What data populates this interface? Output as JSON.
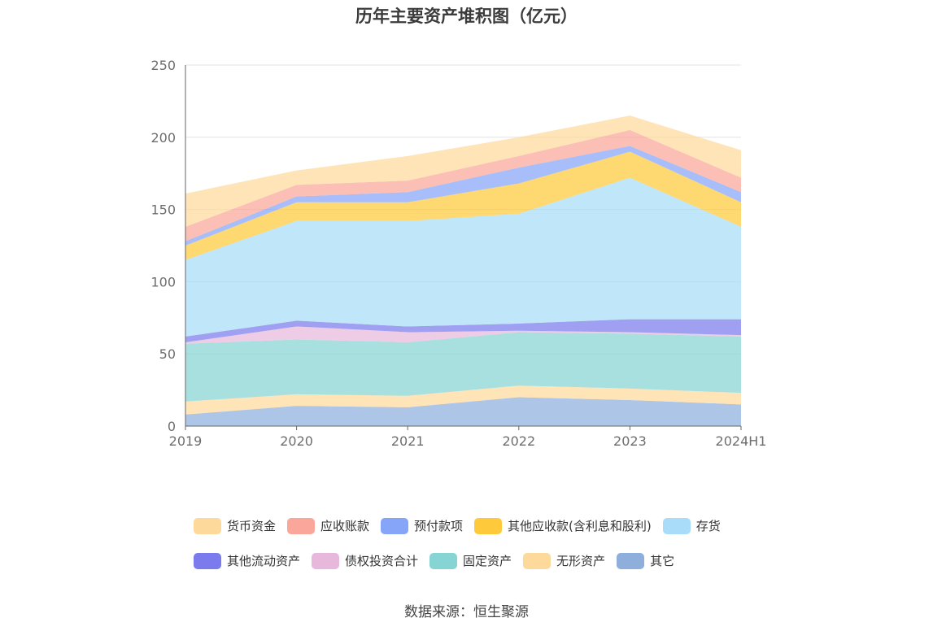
{
  "chart_data": {
    "type": "area",
    "title": "历年主要资产堆积图（亿元）",
    "categories": [
      "2019",
      "2020",
      "2021",
      "2022",
      "2023",
      "2024H1"
    ],
    "ylim": [
      0,
      250
    ],
    "yticks": [
      0,
      50,
      100,
      150,
      200,
      250
    ],
    "grid": true,
    "legend_position": "bottom",
    "stacked": true,
    "series": [
      {
        "name": "其它",
        "color": "#8eaedc",
        "values": [
          8,
          14,
          13,
          20,
          18,
          15
        ]
      },
      {
        "name": "无形资产",
        "color": "#fdd99b",
        "values": [
          9,
          8,
          8,
          8,
          8,
          8
        ]
      },
      {
        "name": "固定资产",
        "color": "#86d4d4",
        "values": [
          40,
          38,
          37,
          37,
          38,
          39
        ]
      },
      {
        "name": "债权投资合计",
        "color": "#e8b8dc",
        "values": [
          1,
          9,
          7,
          1,
          1,
          1
        ]
      },
      {
        "name": "其他流动资产",
        "color": "#7b7bed",
        "values": [
          4,
          4,
          4,
          5,
          9,
          11
        ]
      },
      {
        "name": "存货",
        "color": "#a8dcf8",
        "values": [
          53,
          69,
          73,
          76,
          98,
          64
        ]
      },
      {
        "name": "其他应收款(含利息和股利)",
        "color": "#fec93a",
        "values": [
          10,
          13,
          13,
          21,
          18,
          17
        ]
      },
      {
        "name": "预付款项",
        "color": "#86a5f8",
        "values": [
          3,
          4,
          7,
          11,
          4,
          7
        ]
      },
      {
        "name": "应收账款",
        "color": "#fba69a",
        "values": [
          10,
          8,
          8,
          8,
          11,
          10
        ]
      },
      {
        "name": "货币资金",
        "color": "#fdd99b",
        "values": [
          23,
          10,
          17,
          13,
          10,
          19
        ]
      }
    ],
    "legend_order": [
      "货币资金",
      "应收账款",
      "预付款项",
      "其他应收款(含利息和股利)",
      "存货",
      "其他流动资产",
      "债权投资合计",
      "固定资产",
      "无形资产",
      "其它"
    ]
  },
  "footer": {
    "source": "数据来源：恒生聚源"
  }
}
